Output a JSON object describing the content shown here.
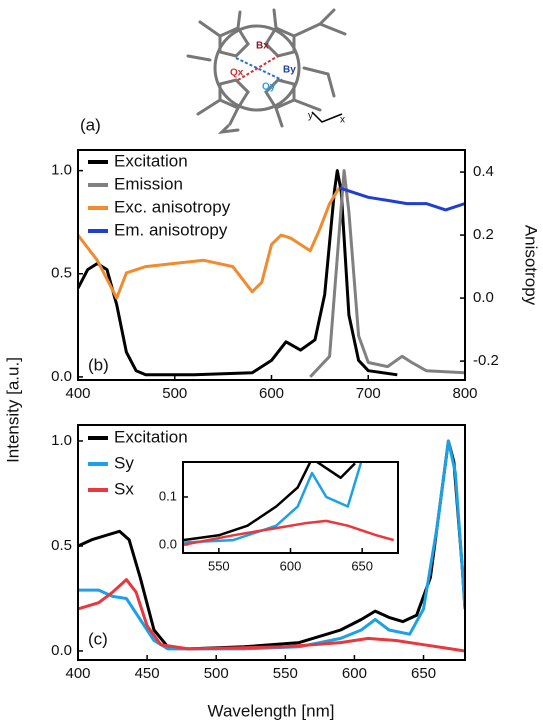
{
  "figure": {
    "panel_a": "(a)",
    "bx": "Bx",
    "by": "By",
    "qx": "Qx",
    "qy": "Qy",
    "axis_y": "y",
    "axis_x": "x",
    "ylabel": "Intensity [a.u.]",
    "xlabel": "Wavelength [nm]"
  },
  "chart_data": [
    {
      "type": "line",
      "annotation": "(b)",
      "y2label": "Anisotropy",
      "xlim": [
        400,
        800
      ],
      "xticks": [
        400,
        500,
        600,
        700,
        800
      ],
      "ylim": [
        -0.015,
        1.1
      ],
      "yticks": [
        {
          "value": 0,
          "label": "0.0"
        },
        {
          "value": 0.5,
          "label": "0.5"
        },
        {
          "value": 1,
          "label": "1.0"
        }
      ],
      "y2lim": [
        -0.26,
        0.47
      ],
      "y2ticks": [
        0.4,
        0.2,
        {
          "value": 0,
          "label": "0.0"
        },
        -0.2
      ],
      "series": [
        {
          "name": "Excitation",
          "color": "#000000",
          "x": [
            400,
            410,
            420,
            430,
            440,
            450,
            460,
            470,
            520,
            580,
            600,
            615,
            630,
            645,
            655,
            665,
            668,
            672,
            680,
            690,
            700,
            730
          ],
          "values": [
            0.43,
            0.52,
            0.55,
            0.52,
            0.35,
            0.12,
            0.03,
            0.01,
            0.01,
            0.02,
            0.08,
            0.17,
            0.13,
            0.18,
            0.4,
            0.9,
            1.0,
            0.9,
            0.3,
            0.08,
            0.03,
            0.01
          ]
        },
        {
          "name": "Emission",
          "color": "#808080",
          "x": [
            640,
            660,
            670,
            675,
            680,
            690,
            700,
            720,
            735,
            745,
            760,
            800
          ],
          "values": [
            0.0,
            0.1,
            0.7,
            1.0,
            0.8,
            0.2,
            0.07,
            0.05,
            0.1,
            0.07,
            0.03,
            0.02
          ]
        },
        {
          "name": "Exc. anisotropy",
          "color": "#f28a2e",
          "axis": "y2",
          "x": [
            400,
            420,
            440,
            450,
            470,
            500,
            530,
            560,
            580,
            590,
            600,
            610,
            620,
            640,
            650,
            660,
            670
          ],
          "values": [
            0.2,
            0.12,
            0.0,
            0.08,
            0.1,
            0.11,
            0.12,
            0.1,
            0.02,
            0.05,
            0.17,
            0.2,
            0.19,
            0.15,
            0.22,
            0.3,
            0.35
          ]
        },
        {
          "name": "Em. anisotropy",
          "color": "#1f3fd0",
          "axis": "y2",
          "x": [
            670,
            700,
            720,
            740,
            760,
            780,
            800
          ],
          "values": [
            0.35,
            0.32,
            0.31,
            0.3,
            0.3,
            0.28,
            0.3
          ]
        }
      ]
    },
    {
      "type": "line",
      "annotation": "(c)",
      "xlim": [
        400,
        680
      ],
      "xticks": [
        400,
        450,
        500,
        550,
        600,
        650
      ],
      "ylim": [
        -0.043,
        1.076
      ],
      "yticks": [
        {
          "value": 0,
          "label": "0.0"
        },
        {
          "value": 0.5,
          "label": "0.5"
        },
        {
          "value": 1,
          "label": "1.0"
        }
      ],
      "series": [
        {
          "name": "Excitation",
          "color": "#000000",
          "x": [
            400,
            410,
            420,
            430,
            437,
            445,
            455,
            465,
            480,
            520,
            560,
            590,
            605,
            615,
            625,
            635,
            645,
            655,
            663,
            668,
            672,
            678,
            680
          ],
          "values": [
            0.5,
            0.53,
            0.55,
            0.57,
            0.53,
            0.35,
            0.1,
            0.02,
            0.01,
            0.02,
            0.04,
            0.1,
            0.15,
            0.19,
            0.16,
            0.14,
            0.17,
            0.35,
            0.75,
            1.0,
            0.9,
            0.4,
            0.2
          ]
        },
        {
          "name": "Sy",
          "color": "#1ca0e6",
          "x": [
            400,
            415,
            425,
            435,
            445,
            455,
            465,
            520,
            560,
            590,
            605,
            615,
            625,
            640,
            650,
            660,
            668,
            673,
            678,
            680
          ],
          "values": [
            0.29,
            0.29,
            0.26,
            0.25,
            0.15,
            0.05,
            0.01,
            0.01,
            0.02,
            0.06,
            0.1,
            0.15,
            0.1,
            0.08,
            0.2,
            0.6,
            1.0,
            0.85,
            0.4,
            0.2
          ]
        },
        {
          "name": "Sx",
          "color": "#e8383d",
          "x": [
            400,
            415,
            425,
            435,
            442,
            450,
            460,
            480,
            550,
            590,
            610,
            630,
            650,
            670,
            680
          ],
          "values": [
            0.2,
            0.23,
            0.28,
            0.34,
            0.28,
            0.12,
            0.03,
            0.01,
            0.02,
            0.04,
            0.06,
            0.05,
            0.03,
            0.01,
            0.0
          ]
        }
      ]
    },
    {
      "type": "line",
      "xlim": [
        525,
        675
      ],
      "xticks": [
        550,
        600,
        650
      ],
      "ylim": [
        -0.017,
        0.173
      ],
      "yticks": [
        {
          "value": 0,
          "label": "0.0"
        },
        0.1
      ],
      "series": [
        {
          "color": "#000000",
          "x": [
            525,
            550,
            570,
            590,
            605,
            615,
            625,
            635,
            645
          ],
          "values": [
            0.01,
            0.02,
            0.04,
            0.08,
            0.12,
            0.18,
            0.16,
            0.14,
            0.17
          ]
        },
        {
          "color": "#1ca0e6",
          "x": [
            525,
            560,
            590,
            605,
            615,
            625,
            640,
            650
          ],
          "values": [
            0.005,
            0.01,
            0.04,
            0.08,
            0.15,
            0.1,
            0.08,
            0.18
          ]
        },
        {
          "color": "#e8383d",
          "x": [
            525,
            560,
            590,
            610,
            625,
            640,
            660,
            672
          ],
          "values": [
            0.0,
            0.02,
            0.035,
            0.045,
            0.05,
            0.04,
            0.02,
            0.01
          ]
        }
      ]
    }
  ]
}
